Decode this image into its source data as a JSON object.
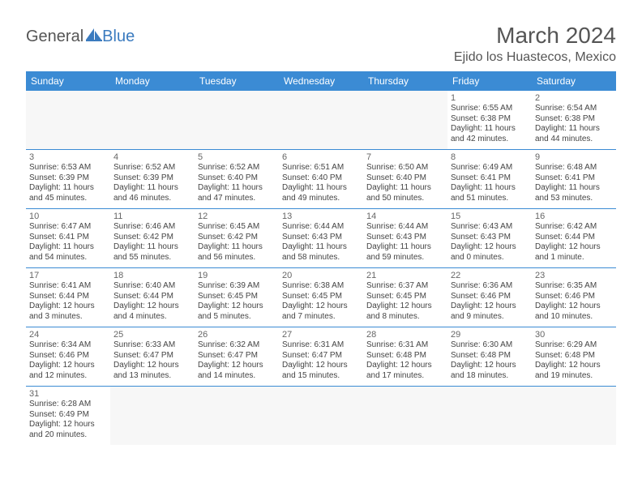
{
  "logo": {
    "part1": "General",
    "part2": "Blue"
  },
  "title": "March 2024",
  "location": "Ejido los Huastecos, Mexico",
  "colors": {
    "header_bg": "#3b8bd4",
    "header_text": "#ffffff",
    "border": "#3b8bd4",
    "logo_blue": "#3b7bbf",
    "title_gray": "#555555"
  },
  "dayNames": [
    "Sunday",
    "Monday",
    "Tuesday",
    "Wednesday",
    "Thursday",
    "Friday",
    "Saturday"
  ],
  "weeks": [
    [
      null,
      null,
      null,
      null,
      null,
      {
        "n": "1",
        "sr": "Sunrise: 6:55 AM",
        "ss": "Sunset: 6:38 PM",
        "d1": "Daylight: 11 hours",
        "d2": "and 42 minutes."
      },
      {
        "n": "2",
        "sr": "Sunrise: 6:54 AM",
        "ss": "Sunset: 6:38 PM",
        "d1": "Daylight: 11 hours",
        "d2": "and 44 minutes."
      }
    ],
    [
      {
        "n": "3",
        "sr": "Sunrise: 6:53 AM",
        "ss": "Sunset: 6:39 PM",
        "d1": "Daylight: 11 hours",
        "d2": "and 45 minutes."
      },
      {
        "n": "4",
        "sr": "Sunrise: 6:52 AM",
        "ss": "Sunset: 6:39 PM",
        "d1": "Daylight: 11 hours",
        "d2": "and 46 minutes."
      },
      {
        "n": "5",
        "sr": "Sunrise: 6:52 AM",
        "ss": "Sunset: 6:40 PM",
        "d1": "Daylight: 11 hours",
        "d2": "and 47 minutes."
      },
      {
        "n": "6",
        "sr": "Sunrise: 6:51 AM",
        "ss": "Sunset: 6:40 PM",
        "d1": "Daylight: 11 hours",
        "d2": "and 49 minutes."
      },
      {
        "n": "7",
        "sr": "Sunrise: 6:50 AM",
        "ss": "Sunset: 6:40 PM",
        "d1": "Daylight: 11 hours",
        "d2": "and 50 minutes."
      },
      {
        "n": "8",
        "sr": "Sunrise: 6:49 AM",
        "ss": "Sunset: 6:41 PM",
        "d1": "Daylight: 11 hours",
        "d2": "and 51 minutes."
      },
      {
        "n": "9",
        "sr": "Sunrise: 6:48 AM",
        "ss": "Sunset: 6:41 PM",
        "d1": "Daylight: 11 hours",
        "d2": "and 53 minutes."
      }
    ],
    [
      {
        "n": "10",
        "sr": "Sunrise: 6:47 AM",
        "ss": "Sunset: 6:41 PM",
        "d1": "Daylight: 11 hours",
        "d2": "and 54 minutes."
      },
      {
        "n": "11",
        "sr": "Sunrise: 6:46 AM",
        "ss": "Sunset: 6:42 PM",
        "d1": "Daylight: 11 hours",
        "d2": "and 55 minutes."
      },
      {
        "n": "12",
        "sr": "Sunrise: 6:45 AM",
        "ss": "Sunset: 6:42 PM",
        "d1": "Daylight: 11 hours",
        "d2": "and 56 minutes."
      },
      {
        "n": "13",
        "sr": "Sunrise: 6:44 AM",
        "ss": "Sunset: 6:43 PM",
        "d1": "Daylight: 11 hours",
        "d2": "and 58 minutes."
      },
      {
        "n": "14",
        "sr": "Sunrise: 6:44 AM",
        "ss": "Sunset: 6:43 PM",
        "d1": "Daylight: 11 hours",
        "d2": "and 59 minutes."
      },
      {
        "n": "15",
        "sr": "Sunrise: 6:43 AM",
        "ss": "Sunset: 6:43 PM",
        "d1": "Daylight: 12 hours",
        "d2": "and 0 minutes."
      },
      {
        "n": "16",
        "sr": "Sunrise: 6:42 AM",
        "ss": "Sunset: 6:44 PM",
        "d1": "Daylight: 12 hours",
        "d2": "and 1 minute."
      }
    ],
    [
      {
        "n": "17",
        "sr": "Sunrise: 6:41 AM",
        "ss": "Sunset: 6:44 PM",
        "d1": "Daylight: 12 hours",
        "d2": "and 3 minutes."
      },
      {
        "n": "18",
        "sr": "Sunrise: 6:40 AM",
        "ss": "Sunset: 6:44 PM",
        "d1": "Daylight: 12 hours",
        "d2": "and 4 minutes."
      },
      {
        "n": "19",
        "sr": "Sunrise: 6:39 AM",
        "ss": "Sunset: 6:45 PM",
        "d1": "Daylight: 12 hours",
        "d2": "and 5 minutes."
      },
      {
        "n": "20",
        "sr": "Sunrise: 6:38 AM",
        "ss": "Sunset: 6:45 PM",
        "d1": "Daylight: 12 hours",
        "d2": "and 7 minutes."
      },
      {
        "n": "21",
        "sr": "Sunrise: 6:37 AM",
        "ss": "Sunset: 6:45 PM",
        "d1": "Daylight: 12 hours",
        "d2": "and 8 minutes."
      },
      {
        "n": "22",
        "sr": "Sunrise: 6:36 AM",
        "ss": "Sunset: 6:46 PM",
        "d1": "Daylight: 12 hours",
        "d2": "and 9 minutes."
      },
      {
        "n": "23",
        "sr": "Sunrise: 6:35 AM",
        "ss": "Sunset: 6:46 PM",
        "d1": "Daylight: 12 hours",
        "d2": "and 10 minutes."
      }
    ],
    [
      {
        "n": "24",
        "sr": "Sunrise: 6:34 AM",
        "ss": "Sunset: 6:46 PM",
        "d1": "Daylight: 12 hours",
        "d2": "and 12 minutes."
      },
      {
        "n": "25",
        "sr": "Sunrise: 6:33 AM",
        "ss": "Sunset: 6:47 PM",
        "d1": "Daylight: 12 hours",
        "d2": "and 13 minutes."
      },
      {
        "n": "26",
        "sr": "Sunrise: 6:32 AM",
        "ss": "Sunset: 6:47 PM",
        "d1": "Daylight: 12 hours",
        "d2": "and 14 minutes."
      },
      {
        "n": "27",
        "sr": "Sunrise: 6:31 AM",
        "ss": "Sunset: 6:47 PM",
        "d1": "Daylight: 12 hours",
        "d2": "and 15 minutes."
      },
      {
        "n": "28",
        "sr": "Sunrise: 6:31 AM",
        "ss": "Sunset: 6:48 PM",
        "d1": "Daylight: 12 hours",
        "d2": "and 17 minutes."
      },
      {
        "n": "29",
        "sr": "Sunrise: 6:30 AM",
        "ss": "Sunset: 6:48 PM",
        "d1": "Daylight: 12 hours",
        "d2": "and 18 minutes."
      },
      {
        "n": "30",
        "sr": "Sunrise: 6:29 AM",
        "ss": "Sunset: 6:48 PM",
        "d1": "Daylight: 12 hours",
        "d2": "and 19 minutes."
      }
    ],
    [
      {
        "n": "31",
        "sr": "Sunrise: 6:28 AM",
        "ss": "Sunset: 6:49 PM",
        "d1": "Daylight: 12 hours",
        "d2": "and 20 minutes."
      },
      null,
      null,
      null,
      null,
      null,
      null
    ]
  ]
}
